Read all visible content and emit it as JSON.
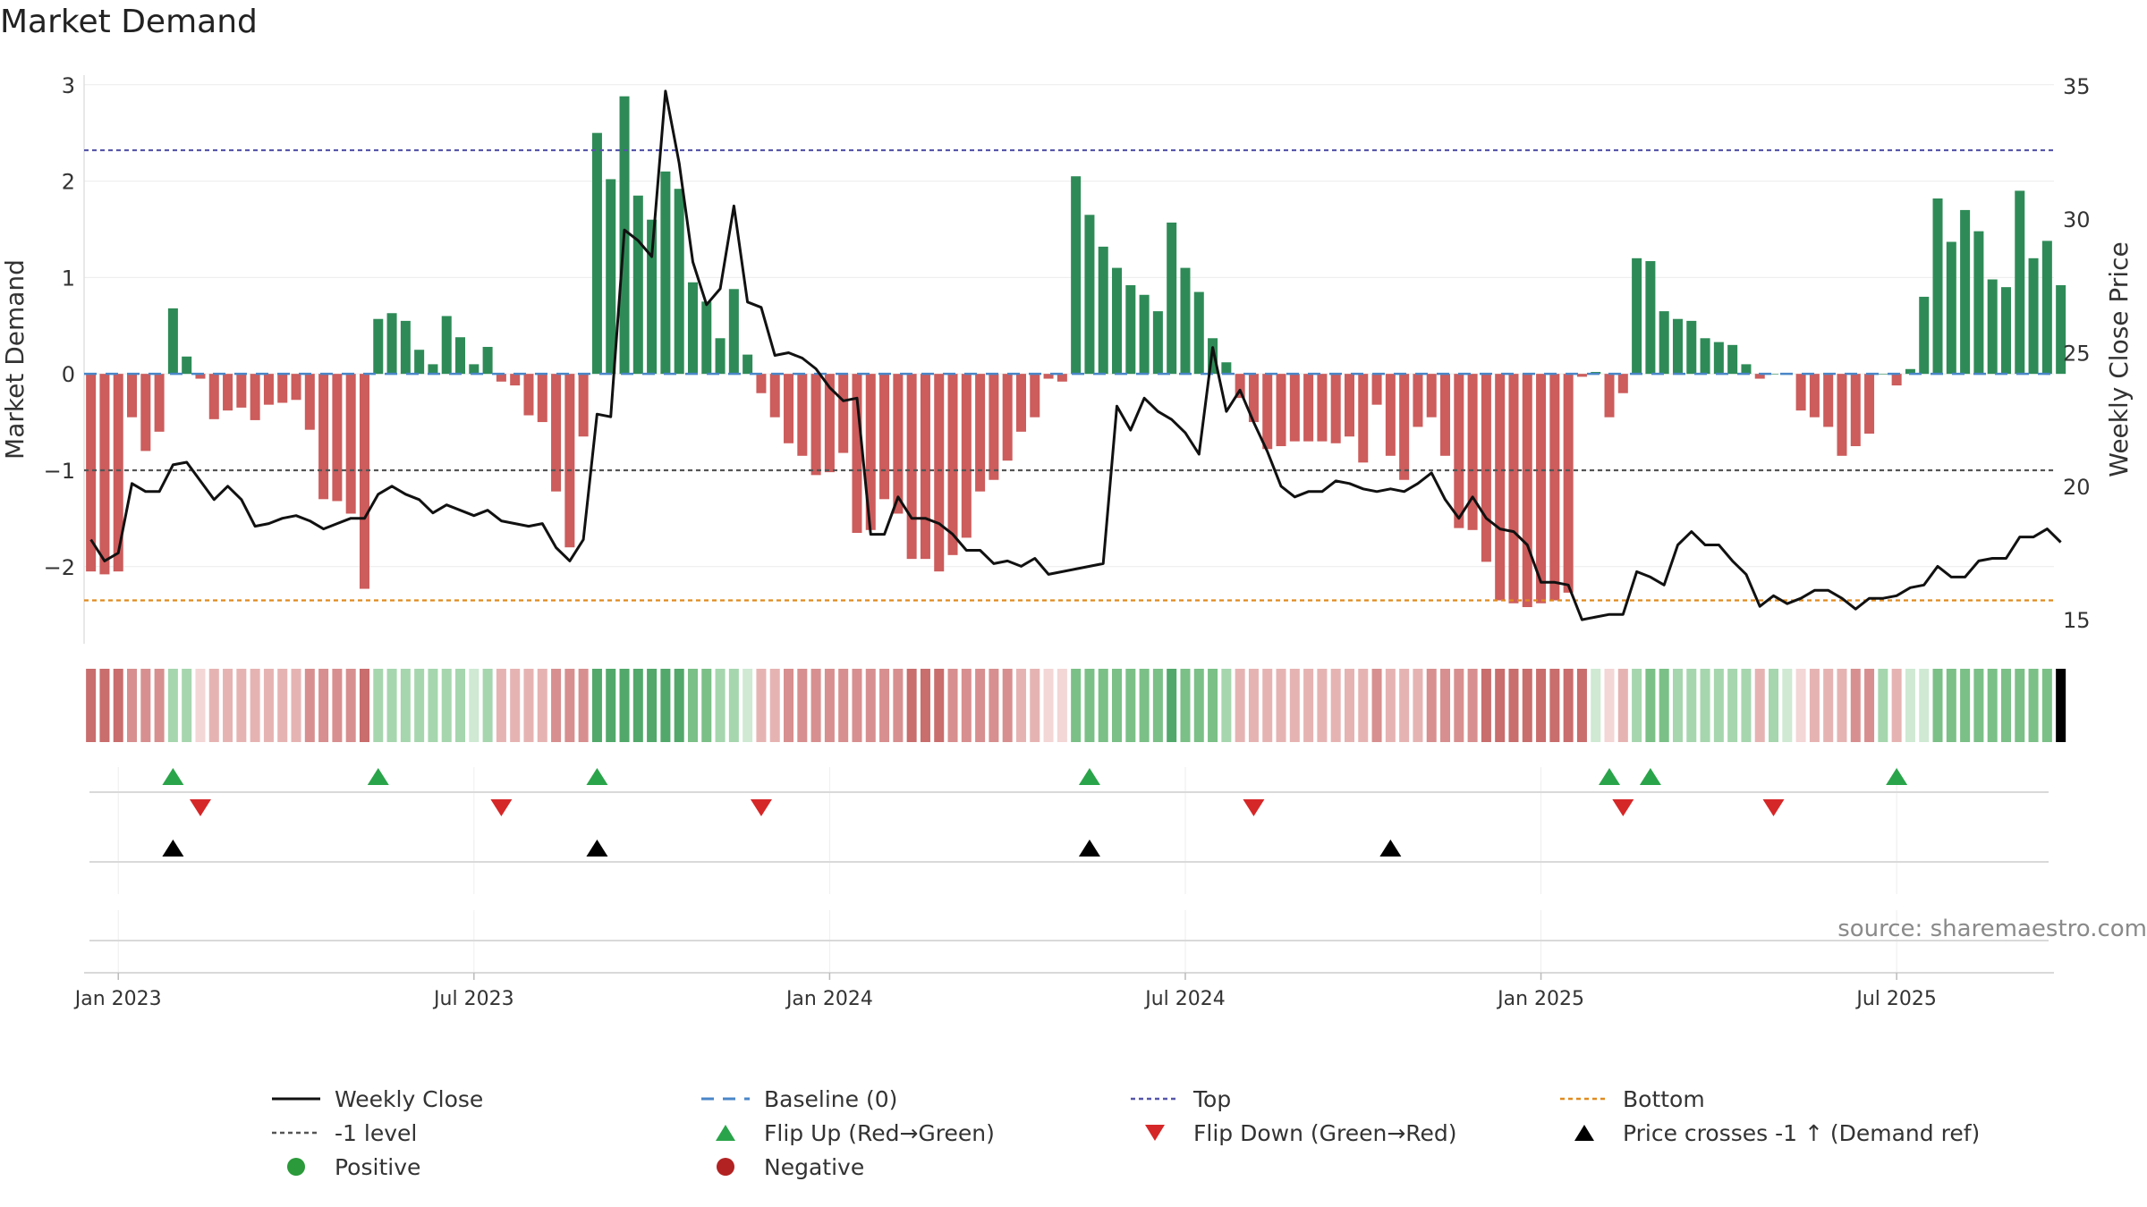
{
  "title": "Market Demand",
  "source": "source: sharemaestro.com",
  "colors": {
    "positive": "#2e8b57",
    "negative": "#cd5c5c",
    "close": "#111111",
    "top": "#5555aa",
    "bottom": "#e08a1e",
    "minus_one": "#555555",
    "flip_up": "#2aa44a",
    "flip_down": "#d62728",
    "cross": "#000000"
  },
  "chart_data": {
    "type": "bar",
    "left_axis": {
      "label": "Market Demand",
      "ylim": [
        -2.8,
        3.1
      ],
      "ticks": [
        -2,
        -1,
        0,
        1,
        2,
        3
      ],
      "tick_labels": [
        "−2",
        "−1",
        "0",
        "1",
        "2",
        "3"
      ]
    },
    "right_axis": {
      "label": "Weekly Close Price",
      "ylim": [
        14.1,
        35.4
      ],
      "ticks": [
        15,
        20,
        25,
        30,
        35
      ]
    },
    "x_axis": {
      "tick_labels": [
        "Jan 2023",
        "Jul 2023",
        "Jan 2024",
        "Jul 2024",
        "Jan 2025",
        "Jul 2025"
      ],
      "tick_weeks": [
        2,
        28,
        54,
        80,
        106,
        132
      ]
    },
    "reference_levels": {
      "top": 2.32,
      "bottom": -2.35,
      "minus_one": -1.0,
      "baseline": 0
    },
    "weeks": 144,
    "demand": [
      -2.05,
      -2.08,
      -2.05,
      -0.45,
      -0.8,
      -0.6,
      0.68,
      0.18,
      -0.05,
      -0.47,
      -0.38,
      -0.35,
      -0.48,
      -0.32,
      -0.3,
      -0.27,
      -0.58,
      -1.3,
      -1.32,
      -1.45,
      -2.23,
      0.57,
      0.63,
      0.55,
      0.25,
      0.1,
      0.6,
      0.38,
      0.1,
      0.28,
      -0.08,
      -0.12,
      -0.43,
      -0.5,
      -1.22,
      -1.8,
      -0.65,
      2.5,
      2.02,
      2.88,
      1.85,
      1.6,
      2.1,
      1.92,
      0.95,
      0.75,
      0.37,
      0.88,
      0.2,
      -0.2,
      -0.45,
      -0.72,
      -0.85,
      -1.05,
      -1.02,
      -0.82,
      -1.65,
      -1.62,
      -1.3,
      -1.45,
      -1.92,
      -1.92,
      -2.05,
      -1.88,
      -1.7,
      -1.22,
      -1.1,
      -0.9,
      -0.6,
      -0.45,
      -0.05,
      -0.08,
      2.05,
      1.65,
      1.32,
      1.1,
      0.92,
      0.82,
      0.65,
      1.57,
      1.1,
      0.85,
      0.37,
      0.12,
      -0.25,
      -0.5,
      -0.78,
      -0.75,
      -0.7,
      -0.7,
      -0.7,
      -0.72,
      -0.65,
      -0.92,
      -0.32,
      -0.85,
      -1.1,
      -0.55,
      -0.45,
      -0.85,
      -1.6,
      -1.62,
      -1.95,
      -2.35,
      -2.38,
      -2.42,
      -2.38,
      -2.35,
      -2.27,
      -0.03,
      0.02,
      -0.45,
      -0.2,
      1.2,
      1.17,
      0.65,
      0.57,
      0.55,
      0.37,
      0.33,
      0.3,
      0.1,
      -0.05,
      0,
      0,
      -0.38,
      -0.45,
      -0.55,
      -0.85,
      -0.75,
      -0.62,
      0,
      -0.12,
      0.05,
      0.8,
      1.82,
      1.37,
      1.7,
      1.48,
      0.98,
      0.9,
      1.9,
      1.2,
      1.38,
      0.92
    ],
    "close": [
      18.0,
      17.2,
      17.5,
      20.1,
      19.8,
      19.8,
      20.8,
      20.9,
      20.2,
      19.5,
      20.0,
      19.5,
      18.5,
      18.6,
      18.8,
      18.9,
      18.7,
      18.4,
      18.6,
      18.8,
      18.8,
      19.7,
      20.0,
      19.7,
      19.5,
      19.0,
      19.3,
      19.1,
      18.9,
      19.1,
      18.7,
      18.6,
      18.5,
      18.6,
      17.7,
      17.2,
      18.0,
      22.7,
      22.6,
      29.6,
      29.2,
      28.6,
      34.8,
      32.1,
      28.4,
      26.8,
      27.4,
      30.5,
      26.9,
      26.7,
      24.9,
      25.0,
      24.8,
      24.4,
      23.7,
      23.2,
      23.3,
      18.2,
      18.2,
      19.6,
      18.8,
      18.8,
      18.6,
      18.2,
      17.6,
      17.6,
      17.1,
      17.2,
      17.0,
      17.3,
      16.7,
      16.8,
      16.9,
      17.0,
      17.1,
      23.0,
      22.1,
      23.3,
      22.8,
      22.5,
      22.0,
      21.2,
      25.2,
      22.8,
      23.6,
      22.4,
      21.3,
      20.0,
      19.6,
      19.8,
      19.8,
      20.2,
      20.1,
      19.9,
      19.8,
      19.9,
      19.8,
      20.1,
      20.5,
      19.5,
      18.8,
      19.6,
      18.8,
      18.4,
      18.3,
      17.8,
      16.4,
      16.4,
      16.3,
      15.0,
      15.1,
      15.2,
      15.2,
      16.8,
      16.6,
      16.3,
      17.8,
      18.3,
      17.8,
      17.8,
      17.2,
      16.7,
      15.5,
      15.9,
      15.6,
      15.8,
      16.1,
      16.1,
      15.8,
      15.4,
      15.8,
      15.8,
      15.9,
      16.2,
      16.3,
      17.0,
      16.6,
      16.6,
      17.2,
      17.3,
      17.3,
      18.1,
      18.1,
      18.4,
      17.9
    ],
    "shade_levels": [
      3,
      3,
      3,
      2,
      2,
      2,
      1,
      1,
      0,
      1,
      1,
      1,
      1,
      1,
      1,
      1,
      2,
      2,
      2,
      2,
      3,
      1,
      1,
      1,
      1,
      1,
      1,
      1,
      0,
      1,
      1,
      1,
      1,
      1,
      2,
      2,
      2,
      3,
      3,
      3,
      3,
      3,
      3,
      3,
      2,
      2,
      1,
      1,
      0,
      1,
      1,
      2,
      2,
      2,
      2,
      2,
      2,
      2,
      2,
      2,
      3,
      3,
      3,
      2,
      2,
      2,
      2,
      2,
      1,
      1,
      0,
      0,
      2,
      2,
      2,
      2,
      2,
      2,
      2,
      3,
      2,
      2,
      2,
      1,
      1,
      1,
      1,
      1,
      1,
      1,
      1,
      1,
      1,
      1,
      2,
      1,
      1,
      1,
      2,
      2,
      2,
      2,
      3,
      3,
      3,
      3,
      3,
      3,
      3,
      3,
      0,
      0,
      1,
      1,
      2,
      2,
      1,
      1,
      1,
      1,
      1,
      1,
      1,
      1,
      0,
      0,
      1,
      1,
      1,
      2,
      2,
      1,
      1,
      0,
      0,
      2,
      2,
      2,
      2,
      2,
      2,
      2,
      2,
      2
    ],
    "flip_up_weeks": [
      6,
      21,
      37,
      73,
      111,
      114,
      132
    ],
    "flip_down_weeks": [
      8,
      30,
      49,
      85,
      112,
      123
    ],
    "cross_weeks": [
      6,
      37,
      73,
      95
    ]
  },
  "legend": [
    [
      {
        "label": "Weekly Close",
        "marker": "line"
      },
      {
        "label": "Baseline (0)",
        "marker": "dash"
      },
      {
        "label": "Top",
        "marker": "dot-purple"
      },
      {
        "label": "Bottom",
        "marker": "dot-orange"
      }
    ],
    [
      {
        "label": "-1 level",
        "marker": "dot-gray"
      },
      {
        "label": "Flip Up (Red→Green)",
        "marker": "tri-up-green"
      },
      {
        "label": "Flip Down (Green→Red)",
        "marker": "tri-down-red"
      },
      {
        "label": "Price crosses -1 ↑ (Demand ref)",
        "marker": "tri-up-black"
      }
    ],
    [
      {
        "label": "Positive",
        "marker": "circle-green"
      },
      {
        "label": "Negative",
        "marker": "circle-red"
      }
    ]
  ]
}
